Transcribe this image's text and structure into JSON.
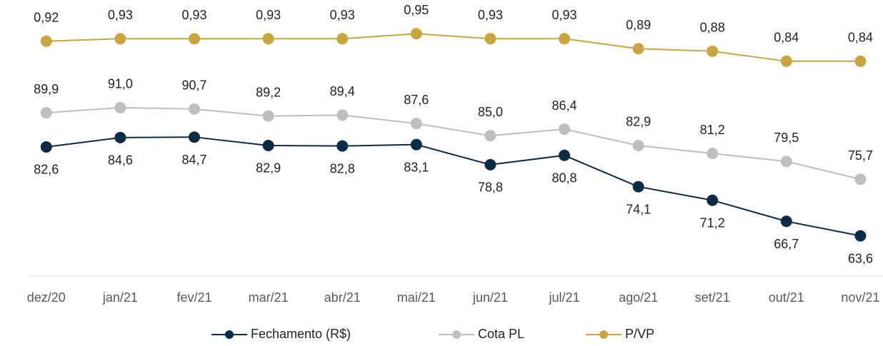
{
  "chart_data": {
    "type": "line",
    "categories": [
      "dez/20",
      "jan/21",
      "fev/21",
      "mar/21",
      "abr/21",
      "mai/21",
      "jun/21",
      "jul/21",
      "ago/21",
      "set/21",
      "out/21",
      "nov/21"
    ],
    "ylim": [
      55,
      114
    ],
    "y2lim": [
      -0.02,
      1.085
    ],
    "series": [
      {
        "name": "Fechamento (R$)",
        "color": "#0d2b45",
        "values": [
          82.6,
          84.6,
          84.7,
          82.9,
          82.8,
          83.1,
          78.8,
          80.8,
          74.1,
          71.2,
          66.7,
          63.6
        ],
        "value_labels": [
          "82,6",
          "84,6",
          "84,7",
          "82,9",
          "82,8",
          "83,1",
          "78,8",
          "80,8",
          "74,1",
          "71,2",
          "66,7",
          "63,6"
        ]
      },
      {
        "name": "Cota PL",
        "color": "#bfbfbf",
        "values": [
          89.9,
          91.0,
          90.7,
          89.2,
          89.4,
          87.6,
          85.0,
          86.4,
          82.9,
          81.2,
          79.5,
          75.7
        ],
        "value_labels": [
          "89,9",
          "91,0",
          "90,7",
          "89,2",
          "89,4",
          "87,6",
          "85,0",
          "86,4",
          "82,9",
          "81,2",
          "79,5",
          "75,7"
        ]
      },
      {
        "name": "P/VP",
        "color": "#c9a542",
        "axis": "y2",
        "values": [
          0.92,
          0.93,
          0.93,
          0.93,
          0.93,
          0.95,
          0.93,
          0.93,
          0.89,
          0.88,
          0.84,
          0.84
        ],
        "value_labels": [
          "0,92",
          "0,93",
          "0,93",
          "0,93",
          "0,93",
          "0,95",
          "0,93",
          "0,93",
          "0,89",
          "0,88",
          "0,84",
          "0,84"
        ]
      }
    ]
  }
}
